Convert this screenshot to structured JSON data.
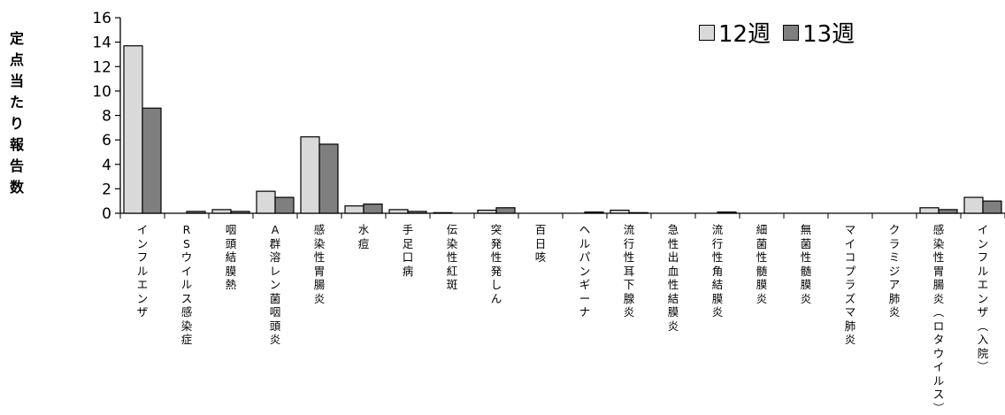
{
  "chart_data": {
    "type": "bar",
    "ylabel": "定点当たり報告数",
    "ylim": [
      0,
      16
    ],
    "yticks": [
      0,
      2,
      4,
      6,
      8,
      10,
      12,
      14,
      16
    ],
    "legend_position": "top-right",
    "grid": false,
    "categories": [
      "インフルエンザ",
      "RSウイルス感染症",
      "咽頭結膜熱",
      "A群溶レン菌咽頭炎",
      "感染性胃腸炎",
      "水痘",
      "手足口病",
      "伝染性紅斑",
      "突発性発しん",
      "百日咳",
      "ヘルパンギーナ",
      "流行性耳下腺炎",
      "急性出血性結膜炎",
      "流行性角結膜炎",
      "細菌性髄膜炎",
      "無菌性髄膜炎",
      "マイコプラズマ肺炎",
      "クラミジア肺炎",
      "感染性胃腸炎(ロタウイルス)",
      "インフルエンザ(入院)"
    ],
    "series": [
      {
        "name": "12週",
        "color": "#d9d9d9",
        "values": [
          13.7,
          0.0,
          0.3,
          1.8,
          6.25,
          0.6,
          0.3,
          0.05,
          0.25,
          0.0,
          0.0,
          0.25,
          0.0,
          0.0,
          0.0,
          0.0,
          0.0,
          0.0,
          0.45,
          1.3
        ]
      },
      {
        "name": "13週",
        "color": "#7f7f7f",
        "values": [
          8.6,
          0.15,
          0.15,
          1.3,
          5.65,
          0.75,
          0.15,
          0.0,
          0.45,
          0.0,
          0.1,
          0.05,
          0.0,
          0.1,
          0.0,
          0.0,
          0.0,
          0.0,
          0.3,
          1.0
        ]
      }
    ]
  }
}
